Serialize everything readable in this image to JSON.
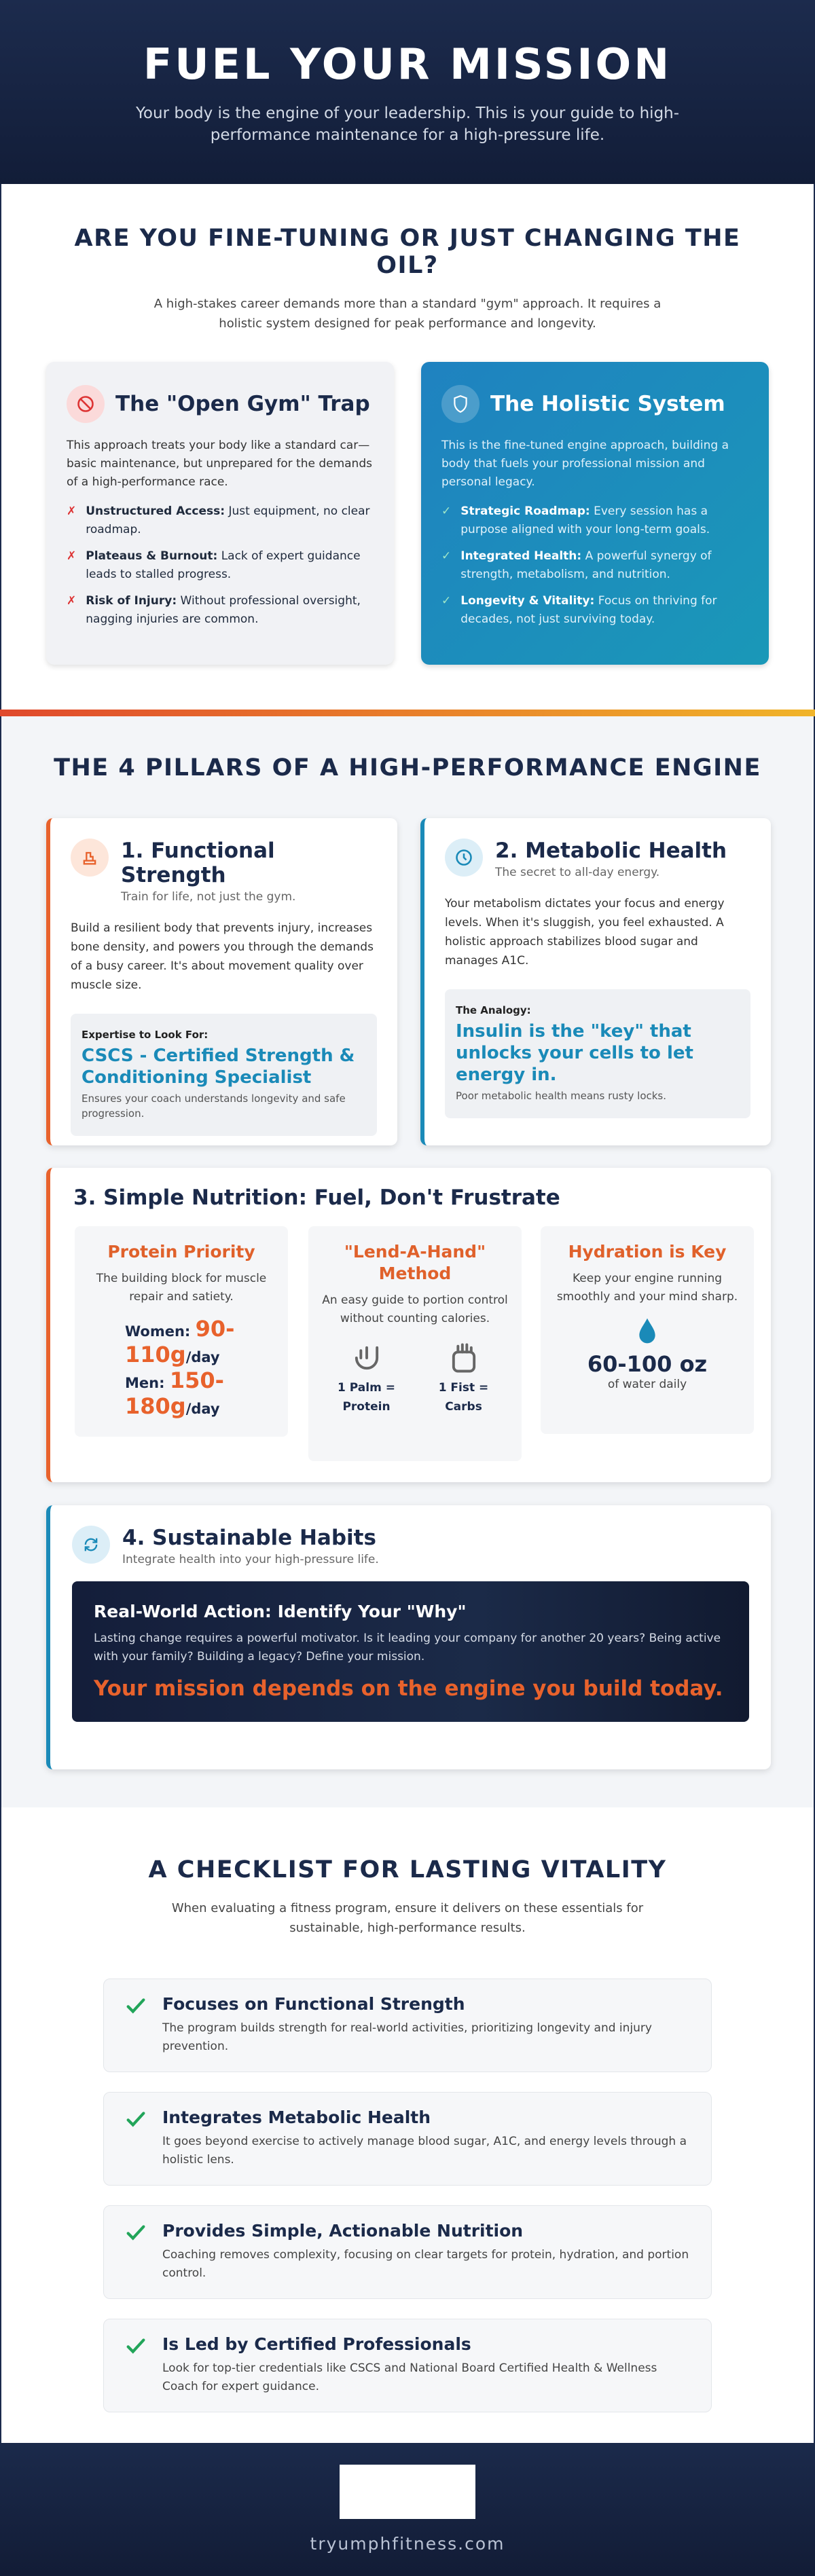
{
  "header": {
    "title": "FUEL YOUR MISSION",
    "subtitle": "Your body is the engine of your leadership. This is your guide to high-performance maintenance for a high-pressure life."
  },
  "comparison": {
    "heading": "ARE YOU FINE-TUNING OR JUST CHANGING THE OIL?",
    "description": "A high-stakes career demands more than a standard \"gym\" approach. It requires a holistic system designed for peak performance and longevity.",
    "cards": [
      {
        "title": "The \"Open Gym\" Trap",
        "intro": "This approach treats your body like a standard car—basic maintenance, but unprepared for the demands of a high-performance race.",
        "items": [
          {
            "label": "Unstructured Access:",
            "text": "Just equipment, no clear roadmap."
          },
          {
            "label": "Plateaus & Burnout:",
            "text": "Lack of expert guidance leads to stalled progress."
          },
          {
            "label": "Risk of Injury:",
            "text": "Without professional oversight, nagging injuries are common."
          }
        ]
      },
      {
        "title": "The Holistic System",
        "intro": "This is the fine-tuned engine approach, building a body that fuels your professional mission and personal legacy.",
        "items": [
          {
            "label": "Strategic Roadmap:",
            "text": "Every session has a purpose aligned with your long-term goals."
          },
          {
            "label": "Integrated Health:",
            "text": "A powerful synergy of strength, metabolism, and nutrition."
          },
          {
            "label": "Longevity & Vitality:",
            "text": "Focus on thriving for decades, not just surviving today."
          }
        ]
      }
    ]
  },
  "pillars": {
    "heading": "THE 4 PILLARS OF A HIGH-PERFORMANCE ENGINE",
    "functional": {
      "title": "1. Functional Strength",
      "subtitle": "Train for life, not just the gym.",
      "body": "Build a resilient body that prevents injury, increases bone density, and powers you through the demands of a busy career. It's about movement quality over muscle size.",
      "inset_label": "Expertise to Look For:",
      "inset_value": "CSCS - Certified Strength & Conditioning Specialist",
      "inset_note": "Ensures your coach understands longevity and safe progression."
    },
    "metabolic": {
      "title": "2. Metabolic Health",
      "subtitle": "The secret to all-day energy.",
      "body": "Your metabolism dictates your focus and energy levels. When it's sluggish, you feel exhausted. A holistic approach stabilizes blood sugar and manages A1C.",
      "inset_label": "The Analogy:",
      "inset_value": "Insulin is the \"key\" that unlocks your cells to let energy in.",
      "inset_note": "Poor metabolic health means rusty locks."
    },
    "nutrition": {
      "title": "3. Simple Nutrition: Fuel, Don't Frustrate",
      "protein": {
        "title": "Protein Priority",
        "text": "The building block for muscle repair and satiety.",
        "women_label": "Women:",
        "women_value": "90-110g",
        "men_label": "Men:",
        "men_value": "150-180g",
        "unit": "/day"
      },
      "hand": {
        "title": "\"Lend-A-Hand\" Method",
        "text": "An easy guide to portion control without counting calories.",
        "palm": "1 Palm = Protein",
        "fist": "1 Fist = Carbs"
      },
      "hydration": {
        "title": "Hydration is Key",
        "text": "Keep your engine running smoothly and your mind sharp.",
        "value": "60-100 oz",
        "note": "of water daily"
      }
    },
    "habits": {
      "title": "4. Sustainable Habits",
      "subtitle": "Integrate health into your high-pressure life.",
      "action_title": "Real-World Action: Identify Your \"Why\"",
      "action_text": "Lasting change requires a powerful motivator. Is it leading your company for another 20 years? Being active with your family? Building a legacy? Define your mission.",
      "mission": "Your mission depends on the engine you build today."
    }
  },
  "checklist": {
    "heading": "A CHECKLIST FOR LASTING VITALITY",
    "description": "When evaluating a fitness program, ensure it delivers on these essentials for sustainable, high-performance results.",
    "items": [
      {
        "title": "Focuses on Functional Strength",
        "text": "The program builds strength for real-world activities, prioritizing longevity and injury prevention."
      },
      {
        "title": "Integrates Metabolic Health",
        "text": "It goes beyond exercise to actively manage blood sugar, A1C, and energy levels through a holistic lens."
      },
      {
        "title": "Provides Simple, Actionable Nutrition",
        "text": "Coaching removes complexity, focusing on clear targets for protein, hydration, and portion control."
      },
      {
        "title": "Is Led by Certified Professionals",
        "text": "Look for top-tier credentials like CSCS and National Board Certified Health & Wellness Coach for expert guidance."
      }
    ]
  },
  "footer": {
    "site": "tryumphfitness.com"
  }
}
